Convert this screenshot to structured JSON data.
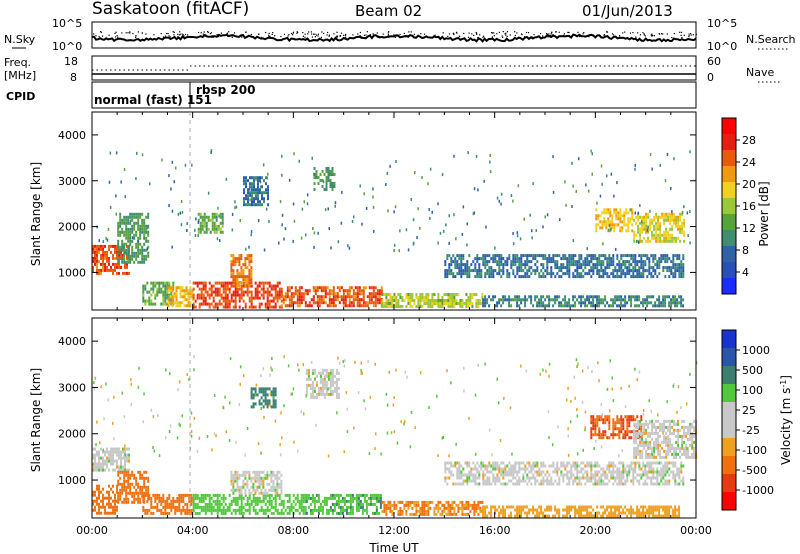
{
  "header": {
    "station": "Saskatoon (fitACF)",
    "beam": "Beam 02",
    "date": "01/Jun/2013"
  },
  "noise_panel": {
    "left_label": "N.Sky",
    "right_label": "N.Search",
    "left_ticks": [
      "10^5",
      "10^0"
    ],
    "right_ticks": [
      "10^5",
      "10^0"
    ]
  },
  "freq_panel": {
    "left_label_1": "Freq.",
    "left_label_2": "[MHz]",
    "left_ticks": [
      "18",
      "8"
    ],
    "right_label": "Nave",
    "right_ticks": [
      "60",
      "0"
    ]
  },
  "cpid_panel": {
    "label": "CPID",
    "segments": [
      {
        "name": "normal (fast) 151",
        "start_hour": 0.0
      },
      {
        "name": "rbsp 200",
        "start_hour": 4.0
      }
    ]
  },
  "x_axis": {
    "label": "Time UT",
    "ticks": [
      "00:00",
      "04:00",
      "08:00",
      "12:00",
      "16:00",
      "20:00",
      "00:00"
    ],
    "tick_hours": [
      0,
      4,
      8,
      12,
      16,
      20,
      24
    ]
  },
  "power_panel": {
    "ylabel": "Slant Range [km]",
    "yticks": [
      "4000",
      "3000",
      "2000",
      "1000"
    ],
    "ytick_values": [
      4000,
      3000,
      2000,
      1000
    ],
    "colorbar_label": "Power [dB]",
    "colorbar_ticks": [
      "28",
      "24",
      "20",
      "16",
      "12",
      "8",
      "4"
    ]
  },
  "velocity_panel": {
    "ylabel": "Slant Range [km]",
    "yticks": [
      "4000",
      "3000",
      "2000",
      "1000"
    ],
    "ytick_values": [
      4000,
      3000,
      2000,
      1000
    ],
    "colorbar_label": "Velocity [m s",
    "colorbar_label_sup": "-1",
    "colorbar_label_end": "]",
    "colorbar_ticks": [
      "1000",
      "500",
      "100",
      "25",
      "-25",
      "-100",
      "-500",
      "-1000"
    ]
  },
  "chart_data": {
    "type": "heatmap",
    "x_range_hours": [
      0,
      24
    ],
    "y_range_km": [
      180,
      4500
    ],
    "power_scale": {
      "colors": [
        "#1c2cff",
        "#2a4fb8",
        "#2f63a8",
        "#3f8f6f",
        "#56a33c",
        "#9bc83a",
        "#f0d020",
        "#f09a10",
        "#e85a10",
        "#e81f10",
        "#ff0000"
      ],
      "levels_db": [
        0,
        4,
        8,
        12,
        16,
        20,
        24,
        28,
        30
      ]
    },
    "velocity_scale": {
      "colors": [
        "#1a33cc",
        "#2a55a8",
        "#3a7f6f",
        "#52c83c",
        "#c8c8c8",
        "#c8c8c8",
        "#f0a020",
        "#f07010",
        "#e83a10",
        "#ff0000"
      ],
      "levels_ms": [
        1000,
        500,
        100,
        25,
        -25,
        -100,
        -500,
        -1000
      ]
    },
    "power_regions": [
      {
        "t0": 0.0,
        "t1": 1.5,
        "r0": 1000,
        "r1": 1600,
        "level": 26
      },
      {
        "t0": 1.0,
        "t1": 2.2,
        "r0": 1200,
        "r1": 2300,
        "level": 10
      },
      {
        "t0": 2.0,
        "t1": 3.2,
        "r0": 300,
        "r1": 800,
        "level": 12
      },
      {
        "t0": 3.0,
        "t1": 4.0,
        "r0": 250,
        "r1": 700,
        "level": 20
      },
      {
        "t0": 4.0,
        "t1": 7.5,
        "r0": 250,
        "r1": 800,
        "level": 27
      },
      {
        "t0": 5.5,
        "t1": 6.3,
        "r0": 700,
        "r1": 1400,
        "level": 24
      },
      {
        "t0": 7.5,
        "t1": 11.5,
        "r0": 250,
        "r1": 700,
        "level": 26
      },
      {
        "t0": 11.5,
        "t1": 15.5,
        "r0": 250,
        "r1": 550,
        "level": 16
      },
      {
        "t0": 15.5,
        "t1": 23.5,
        "r0": 250,
        "r1": 500,
        "level": 8
      },
      {
        "t0": 14.0,
        "t1": 23.5,
        "r0": 900,
        "r1": 1400,
        "level": 6
      },
      {
        "t0": 20.0,
        "t1": 21.5,
        "r0": 1900,
        "r1": 2400,
        "level": 20
      },
      {
        "t0": 21.5,
        "t1": 23.5,
        "r0": 1700,
        "r1": 2300,
        "level": 18
      },
      {
        "t0": 8.8,
        "t1": 9.6,
        "r0": 2800,
        "r1": 3300,
        "level": 10
      },
      {
        "t0": 6.0,
        "t1": 7.0,
        "r0": 2500,
        "r1": 3100,
        "level": 6
      },
      {
        "t0": 4.2,
        "t1": 5.2,
        "r0": 1900,
        "r1": 2300,
        "level": 12
      }
    ],
    "velocity_regions": [
      {
        "t0": 0.0,
        "t1": 1.5,
        "r0": 1200,
        "r1": 1700,
        "level": 0
      },
      {
        "t0": 1.0,
        "t1": 2.2,
        "r0": 500,
        "r1": 1200,
        "level": -300
      },
      {
        "t0": 2.0,
        "t1": 4.0,
        "r0": 250,
        "r1": 700,
        "level": -150
      },
      {
        "t0": 4.0,
        "t1": 8.5,
        "r0": 250,
        "r1": 700,
        "level": 60
      },
      {
        "t0": 5.5,
        "t1": 7.5,
        "r0": 700,
        "r1": 1200,
        "level": 0
      },
      {
        "t0": 8.5,
        "t1": 11.5,
        "r0": 250,
        "r1": 700,
        "level": 80
      },
      {
        "t0": 11.5,
        "t1": 15.5,
        "r0": 250,
        "r1": 550,
        "level": -100
      },
      {
        "t0": 15.5,
        "t1": 23.5,
        "r0": 250,
        "r1": 450,
        "level": -60
      },
      {
        "t0": 14.0,
        "t1": 23.5,
        "r0": 900,
        "r1": 1400,
        "level": 0
      },
      {
        "t0": 19.8,
        "t1": 21.8,
        "r0": 1900,
        "r1": 2400,
        "level": -500
      },
      {
        "t0": 21.5,
        "t1": 24.0,
        "r0": 1500,
        "r1": 2300,
        "level": 0
      },
      {
        "t0": 6.3,
        "t1": 7.3,
        "r0": 2600,
        "r1": 3000,
        "level": 300
      },
      {
        "t0": 8.5,
        "t1": 9.8,
        "r0": 2800,
        "r1": 3400,
        "level": 0
      },
      {
        "t0": 0.0,
        "t1": 1.0,
        "r0": 300,
        "r1": 900,
        "level": -200
      }
    ]
  }
}
